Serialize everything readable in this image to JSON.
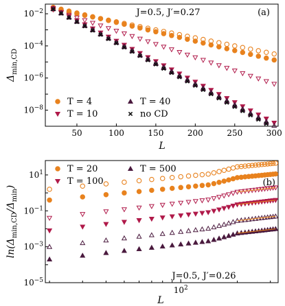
{
  "colors": {
    "T4": "#e8821e",
    "T10": "#b01a4a",
    "T40": "#4a1a3e",
    "noCD": "#111111",
    "T20": "#e8821e",
    "T100": "#b01a4a",
    "T500": "#4a1a3e",
    "fit_line": "#e8821e"
  },
  "chart_data": [
    {
      "type": "scatter",
      "panel": "(a)",
      "annotation": "J=0.5,  J′=0.27",
      "xlabel": "L",
      "ylabel": "Δ_min,CD",
      "xlim": [
        10,
        305
      ],
      "ylim_log10": [
        -9,
        -1.4
      ],
      "yscale": "log",
      "xticks": [
        50,
        100,
        150,
        200,
        250,
        300
      ],
      "yticks_labels": [
        "10^-8",
        "10^-6",
        "10^-4",
        "10^-2"
      ],
      "legend_position": "lower-left",
      "series": [
        {
          "name": "T = 4",
          "key": "T4",
          "marker_filled": "circle",
          "marker_open": "circle",
          "open_at_L": [
            20,
            300,
            10
          ],
          "open_log10_at_L20": -1.7,
          "open_slope_per_10L": -0.1,
          "filled_at_L": [
            20,
            300,
            10
          ],
          "filled_log10_at_L20": -1.6,
          "filled_slope_per_10L": -0.117
        },
        {
          "name": "T = 10",
          "key": "T10",
          "marker_filled": "triangle-down",
          "marker_open": "triangle-down",
          "open_at_L": [
            20,
            300,
            10
          ],
          "open_log10_at_L20": -1.75,
          "open_slope_per_10L": -0.165,
          "filled_at_L": [
            20,
            300,
            10
          ],
          "filled_log10_at_L20": -1.65,
          "filled_slope_per_10L": -0.255
        },
        {
          "name": "T = 40",
          "key": "T40",
          "marker_filled": "triangle-up",
          "marker_open": "triangle-up",
          "open_at_L": [
            20,
            300,
            10
          ],
          "open_log10_at_L20": -1.68,
          "open_slope_per_10L": -0.26,
          "filled_at_L": [
            20,
            300,
            10
          ],
          "filled_log10_at_L20": -1.7,
          "filled_slope_per_10L": -0.262
        },
        {
          "name": "no CD",
          "key": "noCD",
          "marker_filled": "x",
          "filled_at_L": [
            20,
            300,
            10
          ],
          "filled_log10_at_L20": -1.72,
          "filled_slope_per_10L": -0.264
        }
      ]
    },
    {
      "type": "scatter",
      "panel": "(b)",
      "annotation": "J=0.5,  J′=0.26",
      "xlabel": "L",
      "ylabel": "ln(Δ_min,CD/Δ_min)",
      "xscale": "log",
      "yscale": "log",
      "xlim": [
        19,
        330
      ],
      "ylim_log10": [
        -5,
        1.8
      ],
      "xticks_labels": [
        "10^2"
      ],
      "yticks_labels": [
        "10^-5",
        "10^-3",
        "10^-1",
        "10^1"
      ],
      "legend_position": "upper-left",
      "series": [
        {
          "name": "T = 20",
          "key": "T20",
          "marker": "circle",
          "open_log10": 0.2,
          "filled_log10": -0.4,
          "slope": 1.0
        },
        {
          "name": "T = 100",
          "key": "T100",
          "marker": "triangle-down",
          "open_log10": -1.4,
          "filled_log10": -2.1,
          "slope": 1.2
        },
        {
          "name": "T = 500",
          "key": "T500",
          "marker": "triangle-up",
          "open_log10": -3.0,
          "filled_log10": -3.7,
          "slope": 1.2
        }
      ],
      "fit_lines": true
    }
  ]
}
